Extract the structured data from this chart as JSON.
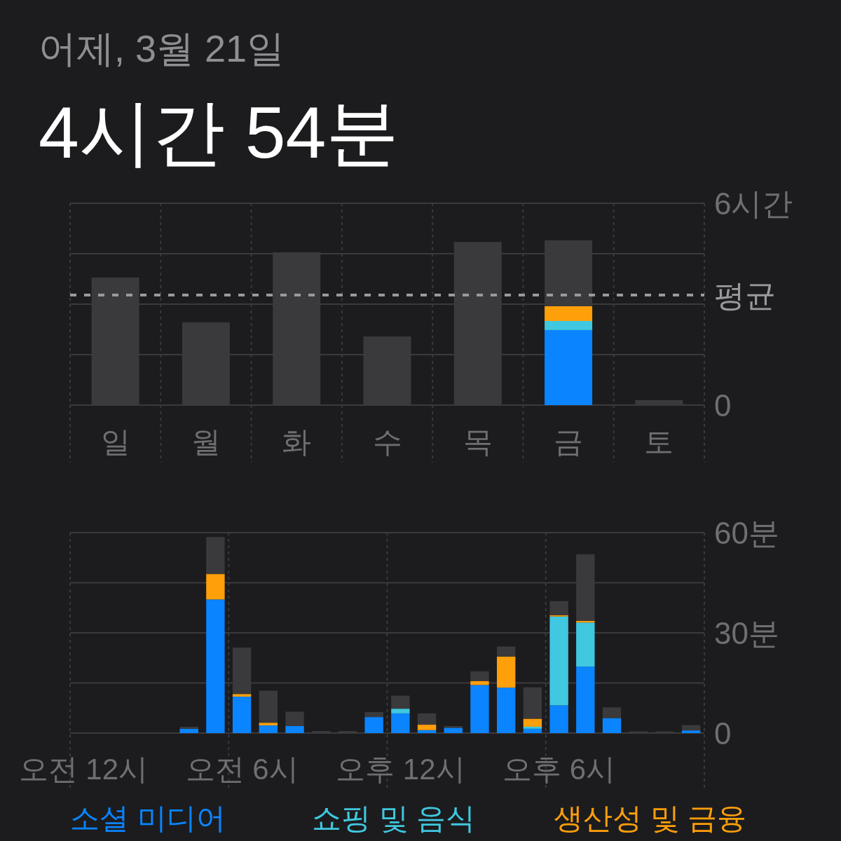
{
  "chart_data": [
    {
      "type": "bar",
      "subtitle": "어제, 3월 21일",
      "title": "4시간 54분",
      "stacked": true,
      "grid": true,
      "categories": [
        "일",
        "월",
        "화",
        "수",
        "목",
        "금",
        "토"
      ],
      "series": [
        {
          "color": "#0a84ff",
          "values": [
            null,
            null,
            null,
            null,
            null,
            2.23,
            null
          ]
        },
        {
          "color": "#40c8e0",
          "values": [
            null,
            null,
            null,
            null,
            null,
            0.27,
            null
          ]
        },
        {
          "color": "#ff9f0a",
          "values": [
            null,
            null,
            null,
            null,
            null,
            0.44,
            null
          ]
        },
        {
          "color": "#3a3a3c",
          "values": [
            3.79,
            2.46,
            4.54,
            2.04,
            4.85,
            1.96,
            0.15
          ]
        }
      ],
      "ylim": [
        0,
        6
      ],
      "yticks": [
        0,
        {
          "value": 1.5,
          "label": null
        },
        {
          "value": 3,
          "label": null
        },
        {
          "value": 4.5,
          "label": null
        },
        {
          "value": 6,
          "label": "6시간"
        }
      ],
      "ref_lines": [
        {
          "axis": "y",
          "value": 3.27,
          "label": "평균",
          "color": "#9a9a9e",
          "line_style": "dashed"
        }
      ]
    },
    {
      "type": "bar",
      "stacked": true,
      "grid": true,
      "legend": "bottom",
      "categories": [
        "오전 12시",
        null,
        null,
        null,
        null,
        null,
        "오전 6시",
        null,
        null,
        null,
        null,
        null,
        "오후 12시",
        null,
        null,
        null,
        null,
        null,
        "오후 6시",
        null,
        null,
        null,
        null,
        null
      ],
      "series": [
        {
          "name": "소셜 미디어",
          "color": "#0a84ff",
          "values": [
            null,
            null,
            null,
            null,
            1.3,
            40,
            10.9,
            2.3,
            2.1,
            null,
            null,
            4.8,
            5.9,
            0.9,
            1.6,
            14.4,
            13.6,
            1.3,
            8.3,
            19.9,
            4.5,
            null,
            null,
            0.8
          ]
        },
        {
          "name": "쇼핑 및 음식",
          "color": "#40c8e0",
          "values": [
            null,
            null,
            null,
            null,
            null,
            null,
            null,
            null,
            null,
            null,
            null,
            null,
            1.4,
            null,
            null,
            null,
            null,
            0.6,
            26.6,
            13.2,
            null,
            null,
            null,
            null
          ]
        },
        {
          "name": "생산성 및 금융",
          "color": "#ff9f0a",
          "values": [
            null,
            null,
            null,
            null,
            null,
            7.6,
            0.8,
            0.8,
            null,
            null,
            null,
            null,
            null,
            1.6,
            null,
            1.2,
            9.3,
            2.4,
            0.4,
            0.5,
            null,
            null,
            null,
            null
          ]
        },
        {
          "color": "#3a3a3c",
          "values": [
            null,
            null,
            null,
            null,
            0.6,
            11.1,
            13.9,
            9.6,
            4.3,
            0.6,
            0.6,
            1.5,
            3.9,
            3.4,
            0.5,
            2.9,
            3.0,
            9.4,
            4.2,
            19.9,
            3.2,
            0.5,
            0.5,
            1.6
          ]
        }
      ],
      "ylim": [
        0,
        60
      ],
      "yticks": [
        0,
        {
          "value": 15,
          "label": null
        },
        {
          "value": 30,
          "label": "30분"
        },
        {
          "value": 45,
          "label": null
        },
        {
          "value": 60,
          "label": "60분"
        }
      ]
    }
  ]
}
